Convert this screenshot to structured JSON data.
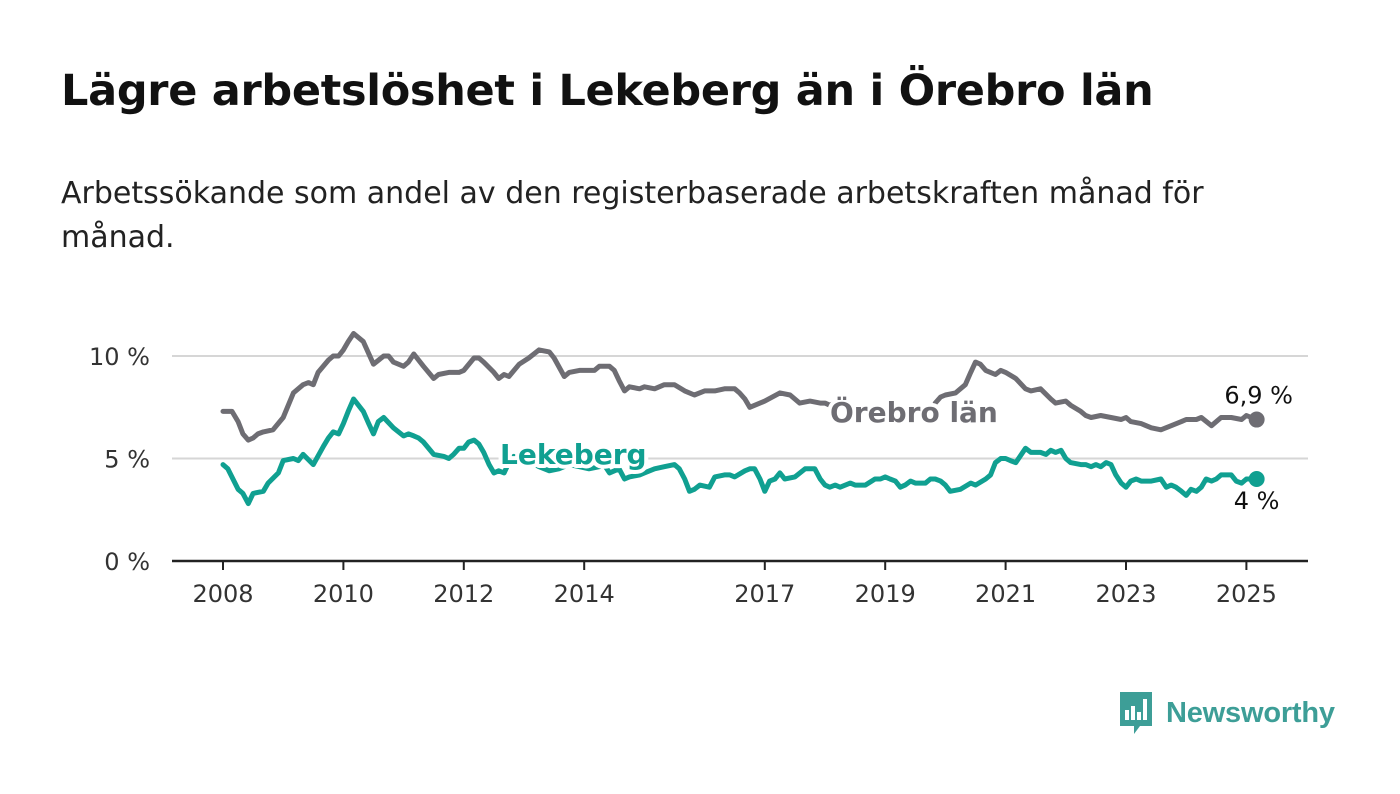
{
  "title": "Lägre arbetslöshet i Lekeberg än i Örebro län",
  "subtitle": "Arbetssökande som andel av den registerbaserade arbetskraften månad för månad.",
  "brand": {
    "name": "Newsworthy",
    "icon": "bar-chart-speech-bubble-icon",
    "color": "#3d9e97"
  },
  "chart_data": {
    "type": "line",
    "title": "Lägre arbetslöshet i Lekeberg än i Örebro län",
    "xlabel": "",
    "ylabel": "",
    "xlim": [
      2008,
      2025.2
    ],
    "ylim": [
      0,
      11
    ],
    "y_ticks": [
      {
        "value": 0,
        "label": "0 %"
      },
      {
        "value": 5,
        "label": "5 %"
      },
      {
        "value": 10,
        "label": "10 %"
      }
    ],
    "x_ticks": [
      {
        "value": 2008,
        "label": "2008"
      },
      {
        "value": 2010,
        "label": "2010"
      },
      {
        "value": 2012,
        "label": "2012"
      },
      {
        "value": 2014,
        "label": "2014"
      },
      {
        "value": 2017,
        "label": "2017"
      },
      {
        "value": 2019,
        "label": "2019"
      },
      {
        "value": 2021,
        "label": "2021"
      },
      {
        "value": 2023,
        "label": "2023"
      },
      {
        "value": 2025,
        "label": "2025"
      }
    ],
    "grid": "horizontal",
    "legend": "inline labels",
    "series": [
      {
        "name": "Örebro län",
        "color": "#6e6d73",
        "end_label": "6,9 %",
        "points": [
          [
            2008.0,
            7.3
          ],
          [
            2008.15,
            7.3
          ],
          [
            2008.25,
            6.8
          ],
          [
            2008.33,
            6.2
          ],
          [
            2008.42,
            5.9
          ],
          [
            2008.5,
            6.0
          ],
          [
            2008.58,
            6.2
          ],
          [
            2008.67,
            6.3
          ],
          [
            2008.83,
            6.4
          ],
          [
            2009.0,
            7.0
          ],
          [
            2009.17,
            8.2
          ],
          [
            2009.33,
            8.6
          ],
          [
            2009.42,
            8.7
          ],
          [
            2009.5,
            8.6
          ],
          [
            2009.58,
            9.2
          ],
          [
            2009.75,
            9.8
          ],
          [
            2009.83,
            10.0
          ],
          [
            2009.92,
            10.0
          ],
          [
            2010.0,
            10.3
          ],
          [
            2010.08,
            10.7
          ],
          [
            2010.17,
            11.1
          ],
          [
            2010.33,
            10.7
          ],
          [
            2010.5,
            9.6
          ],
          [
            2010.67,
            10.0
          ],
          [
            2010.75,
            10.0
          ],
          [
            2010.83,
            9.7
          ],
          [
            2011.0,
            9.5
          ],
          [
            2011.08,
            9.7
          ],
          [
            2011.17,
            10.1
          ],
          [
            2011.33,
            9.5
          ],
          [
            2011.5,
            8.9
          ],
          [
            2011.58,
            9.1
          ],
          [
            2011.75,
            9.2
          ],
          [
            2011.92,
            9.2
          ],
          [
            2012.0,
            9.3
          ],
          [
            2012.17,
            9.9
          ],
          [
            2012.25,
            9.9
          ],
          [
            2012.33,
            9.7
          ],
          [
            2012.5,
            9.2
          ],
          [
            2012.58,
            8.9
          ],
          [
            2012.67,
            9.1
          ],
          [
            2012.75,
            9.0
          ],
          [
            2012.92,
            9.6
          ],
          [
            2013.08,
            9.9
          ],
          [
            2013.25,
            10.3
          ],
          [
            2013.42,
            10.2
          ],
          [
            2013.5,
            9.9
          ],
          [
            2013.67,
            9.0
          ],
          [
            2013.75,
            9.2
          ],
          [
            2013.92,
            9.3
          ],
          [
            2014.0,
            9.3
          ],
          [
            2014.17,
            9.3
          ],
          [
            2014.25,
            9.5
          ],
          [
            2014.42,
            9.5
          ],
          [
            2014.5,
            9.3
          ],
          [
            2014.58,
            8.8
          ],
          [
            2014.67,
            8.3
          ],
          [
            2014.75,
            8.5
          ],
          [
            2014.92,
            8.4
          ],
          [
            2015.0,
            8.5
          ],
          [
            2015.17,
            8.4
          ],
          [
            2015.33,
            8.6
          ],
          [
            2015.5,
            8.6
          ],
          [
            2015.67,
            8.3
          ],
          [
            2015.83,
            8.1
          ],
          [
            2016.0,
            8.3
          ],
          [
            2016.17,
            8.3
          ],
          [
            2016.33,
            8.4
          ],
          [
            2016.5,
            8.4
          ],
          [
            2016.58,
            8.2
          ],
          [
            2016.67,
            7.9
          ],
          [
            2016.75,
            7.5
          ],
          [
            2016.92,
            7.7
          ],
          [
            2017.0,
            7.8
          ],
          [
            2017.25,
            8.2
          ],
          [
            2017.42,
            8.1
          ],
          [
            2017.58,
            7.7
          ],
          [
            2017.75,
            7.8
          ],
          [
            2017.92,
            7.7
          ],
          [
            2018.0,
            7.7
          ],
          [
            2018.08,
            7.6
          ],
          [
            2018.25,
            7.8
          ],
          [
            2018.33,
            7.7
          ]
        ],
        "points_b": [
          [
            2019.83,
            7.7
          ],
          [
            2019.92,
            8.0
          ],
          [
            2020.0,
            8.1
          ],
          [
            2020.17,
            8.2
          ],
          [
            2020.33,
            8.6
          ],
          [
            2020.42,
            9.2
          ],
          [
            2020.5,
            9.7
          ],
          [
            2020.58,
            9.6
          ],
          [
            2020.67,
            9.3
          ],
          [
            2020.83,
            9.1
          ],
          [
            2020.92,
            9.3
          ],
          [
            2021.0,
            9.2
          ],
          [
            2021.17,
            8.9
          ],
          [
            2021.33,
            8.4
          ],
          [
            2021.42,
            8.3
          ],
          [
            2021.58,
            8.4
          ],
          [
            2021.75,
            7.9
          ],
          [
            2021.83,
            7.7
          ],
          [
            2022.0,
            7.8
          ],
          [
            2022.08,
            7.6
          ],
          [
            2022.25,
            7.3
          ],
          [
            2022.33,
            7.1
          ],
          [
            2022.42,
            7.0
          ],
          [
            2022.58,
            7.1
          ],
          [
            2022.75,
            7.0
          ],
          [
            2022.92,
            6.9
          ],
          [
            2023.0,
            7.0
          ],
          [
            2023.08,
            6.8
          ],
          [
            2023.25,
            6.7
          ],
          [
            2023.42,
            6.5
          ],
          [
            2023.58,
            6.4
          ],
          [
            2023.75,
            6.6
          ],
          [
            2023.92,
            6.8
          ],
          [
            2024.0,
            6.9
          ],
          [
            2024.17,
            6.9
          ],
          [
            2024.25,
            7.0
          ],
          [
            2024.42,
            6.6
          ],
          [
            2024.58,
            7.0
          ],
          [
            2024.75,
            7.0
          ],
          [
            2024.92,
            6.9
          ],
          [
            2025.0,
            7.1
          ],
          [
            2025.08,
            7.0
          ],
          [
            2025.17,
            6.9
          ]
        ]
      },
      {
        "name": "Lekeberg",
        "color": "#10a091",
        "end_label": "4 %",
        "points": [
          [
            2008.0,
            4.7
          ],
          [
            2008.08,
            4.5
          ],
          [
            2008.25,
            3.5
          ],
          [
            2008.33,
            3.3
          ],
          [
            2008.42,
            2.8
          ],
          [
            2008.5,
            3.3
          ],
          [
            2008.67,
            3.4
          ],
          [
            2008.75,
            3.8
          ],
          [
            2008.92,
            4.3
          ],
          [
            2009.0,
            4.9
          ],
          [
            2009.17,
            5.0
          ],
          [
            2009.25,
            4.9
          ],
          [
            2009.33,
            5.2
          ],
          [
            2009.5,
            4.7
          ],
          [
            2009.67,
            5.6
          ],
          [
            2009.75,
            6.0
          ],
          [
            2009.83,
            6.3
          ],
          [
            2009.92,
            6.2
          ],
          [
            2010.0,
            6.7
          ],
          [
            2010.08,
            7.3
          ],
          [
            2010.17,
            7.9
          ],
          [
            2010.33,
            7.3
          ],
          [
            2010.42,
            6.7
          ],
          [
            2010.5,
            6.2
          ],
          [
            2010.58,
            6.8
          ],
          [
            2010.67,
            7.0
          ],
          [
            2010.83,
            6.5
          ],
          [
            2011.0,
            6.1
          ],
          [
            2011.08,
            6.2
          ],
          [
            2011.17,
            6.1
          ],
          [
            2011.25,
            6.0
          ],
          [
            2011.33,
            5.8
          ],
          [
            2011.5,
            5.2
          ],
          [
            2011.67,
            5.1
          ],
          [
            2011.75,
            5.0
          ],
          [
            2011.83,
            5.2
          ],
          [
            2011.92,
            5.5
          ],
          [
            2012.0,
            5.5
          ],
          [
            2012.08,
            5.8
          ],
          [
            2012.17,
            5.9
          ],
          [
            2012.25,
            5.7
          ],
          [
            2012.33,
            5.3
          ],
          [
            2012.42,
            4.7
          ],
          [
            2012.5,
            4.3
          ],
          [
            2012.58,
            4.4
          ],
          [
            2012.67,
            4.3
          ],
          [
            2012.75,
            4.8
          ],
          [
            2012.83,
            5.1
          ],
          [
            2012.92,
            4.8
          ],
          [
            2013.08,
            4.9
          ],
          [
            2013.25,
            4.6
          ],
          [
            2013.42,
            4.4
          ],
          [
            2013.58,
            4.5
          ],
          [
            2013.75,
            4.7
          ],
          [
            2013.92,
            4.6
          ],
          [
            2014.08,
            4.5
          ],
          [
            2014.25,
            4.6
          ],
          [
            2014.33,
            4.7
          ],
          [
            2014.42,
            4.3
          ],
          [
            2014.58,
            4.5
          ],
          [
            2014.67,
            4.0
          ],
          [
            2014.75,
            4.1
          ],
          [
            2014.92,
            4.2
          ],
          [
            2015.0,
            4.3
          ],
          [
            2015.17,
            4.5
          ],
          [
            2015.33,
            4.6
          ],
          [
            2015.5,
            4.7
          ],
          [
            2015.58,
            4.5
          ],
          [
            2015.67,
            4.0
          ],
          [
            2015.75,
            3.4
          ],
          [
            2015.83,
            3.5
          ],
          [
            2015.92,
            3.7
          ],
          [
            2016.08,
            3.6
          ],
          [
            2016.17,
            4.1
          ],
          [
            2016.33,
            4.2
          ],
          [
            2016.42,
            4.2
          ],
          [
            2016.5,
            4.1
          ],
          [
            2016.67,
            4.4
          ],
          [
            2016.75,
            4.5
          ],
          [
            2016.83,
            4.5
          ],
          [
            2016.92,
            4.0
          ],
          [
            2017.0,
            3.4
          ],
          [
            2017.08,
            3.9
          ],
          [
            2017.17,
            4.0
          ],
          [
            2017.25,
            4.3
          ],
          [
            2017.33,
            4.0
          ],
          [
            2017.5,
            4.1
          ],
          [
            2017.67,
            4.5
          ],
          [
            2017.83,
            4.5
          ],
          [
            2017.92,
            4.0
          ],
          [
            2018.0,
            3.7
          ],
          [
            2018.08,
            3.6
          ],
          [
            2018.17,
            3.7
          ],
          [
            2018.25,
            3.6
          ],
          [
            2018.42,
            3.8
          ],
          [
            2018.5,
            3.7
          ],
          [
            2018.67,
            3.7
          ],
          [
            2018.83,
            4.0
          ],
          [
            2018.92,
            4.0
          ],
          [
            2019.0,
            4.1
          ],
          [
            2019.08,
            4.0
          ],
          [
            2019.17,
            3.9
          ],
          [
            2019.25,
            3.6
          ],
          [
            2019.33,
            3.7
          ],
          [
            2019.42,
            3.9
          ],
          [
            2019.5,
            3.8
          ],
          [
            2019.67,
            3.8
          ],
          [
            2019.75,
            4.0
          ],
          [
            2019.83,
            4.0
          ],
          [
            2019.92,
            3.9
          ],
          [
            2020.0,
            3.7
          ],
          [
            2020.08,
            3.4
          ],
          [
            2020.25,
            3.5
          ],
          [
            2020.42,
            3.8
          ],
          [
            2020.5,
            3.7
          ],
          [
            2020.67,
            4.0
          ],
          [
            2020.75,
            4.2
          ],
          [
            2020.83,
            4.8
          ],
          [
            2020.92,
            5.0
          ],
          [
            2021.0,
            5.0
          ],
          [
            2021.08,
            4.9
          ],
          [
            2021.17,
            4.8
          ],
          [
            2021.33,
            5.5
          ],
          [
            2021.42,
            5.3
          ],
          [
            2021.58,
            5.3
          ],
          [
            2021.67,
            5.2
          ],
          [
            2021.75,
            5.4
          ],
          [
            2021.83,
            5.3
          ],
          [
            2021.92,
            5.4
          ],
          [
            2022.0,
            5.0
          ],
          [
            2022.08,
            4.8
          ],
          [
            2022.25,
            4.7
          ],
          [
            2022.33,
            4.7
          ],
          [
            2022.42,
            4.6
          ],
          [
            2022.5,
            4.7
          ],
          [
            2022.58,
            4.6
          ],
          [
            2022.67,
            4.8
          ],
          [
            2022.75,
            4.7
          ],
          [
            2022.83,
            4.2
          ],
          [
            2022.92,
            3.8
          ],
          [
            2023.0,
            3.6
          ],
          [
            2023.08,
            3.9
          ],
          [
            2023.17,
            4.0
          ],
          [
            2023.25,
            3.9
          ],
          [
            2023.42,
            3.9
          ],
          [
            2023.58,
            4.0
          ],
          [
            2023.67,
            3.6
          ],
          [
            2023.75,
            3.7
          ],
          [
            2023.83,
            3.6
          ],
          [
            2023.92,
            3.4
          ],
          [
            2024.0,
            3.2
          ],
          [
            2024.08,
            3.5
          ],
          [
            2024.17,
            3.4
          ],
          [
            2024.25,
            3.6
          ],
          [
            2024.33,
            4.0
          ],
          [
            2024.42,
            3.9
          ],
          [
            2024.5,
            4.0
          ],
          [
            2024.58,
            4.2
          ],
          [
            2024.75,
            4.2
          ],
          [
            2024.83,
            3.9
          ],
          [
            2024.92,
            3.8
          ],
          [
            2025.0,
            4.0
          ],
          [
            2025.08,
            4.0
          ],
          [
            2025.17,
            4.0
          ]
        ]
      }
    ],
    "end_point": {
      "x": 2025.17
    }
  }
}
